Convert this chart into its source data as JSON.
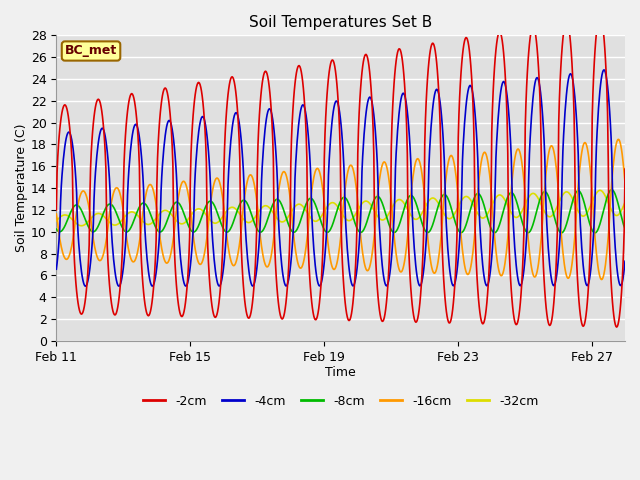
{
  "title": "Soil Temperatures Set B",
  "xlabel": "Time",
  "ylabel": "Soil Temperature (C)",
  "ylim": [
    0,
    28
  ],
  "xlim_days": 17,
  "xtick_positions": [
    0,
    4,
    8,
    12,
    16
  ],
  "xtick_labels": [
    "Feb 11",
    "Feb 15",
    "Feb 19",
    "Feb 23",
    "Feb 27"
  ],
  "ytick_positions": [
    0,
    2,
    4,
    6,
    8,
    10,
    12,
    14,
    16,
    18,
    20,
    22,
    24,
    26,
    28
  ],
  "colors": {
    "-2cm": "#dd0000",
    "-4cm": "#0000cc",
    "-8cm": "#00bb00",
    "-16cm": "#ff9900",
    "-32cm": "#dddd00"
  },
  "legend_label": "BC_met",
  "legend_bg": "#ffff99",
  "legend_border": "#996600",
  "plot_bg": "#e0e0e0",
  "fig_bg": "#f0f0f0",
  "grid_color": "#ffffff",
  "n_days": 17,
  "points_per_day": 48,
  "series": {
    "-2cm": {
      "base": 12.0,
      "amp_start": 9.5,
      "amp_end": 14.5,
      "phase_shift": 0.0,
      "trend": 0.22,
      "sharpness": 2.0
    },
    "-4cm": {
      "base": 12.0,
      "amp_start": 7.0,
      "amp_end": 10.0,
      "phase_shift": 0.12,
      "trend": 0.18,
      "sharpness": 1.5
    },
    "-8cm": {
      "base": 11.2,
      "amp_start": 1.2,
      "amp_end": 2.0,
      "phase_shift": 0.35,
      "trend": 0.04,
      "sharpness": 1.0
    },
    "-16cm": {
      "base": 10.5,
      "amp_start": 3.0,
      "amp_end": 6.5,
      "phase_shift": 0.55,
      "trend": 0.09,
      "sharpness": 1.2
    },
    "-32cm": {
      "base": 11.0,
      "amp_start": 0.5,
      "amp_end": 1.2,
      "phase_shift": 1.0,
      "trend": 0.1,
      "sharpness": 1.0
    }
  }
}
